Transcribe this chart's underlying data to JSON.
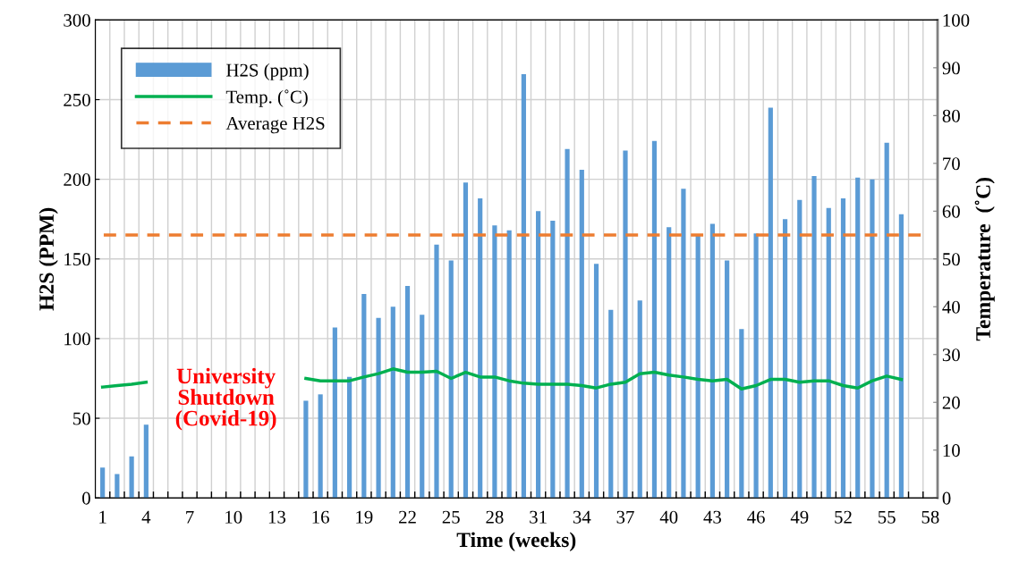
{
  "chart_data": {
    "type": "bar",
    "xlabel": "Time (weeks)",
    "ylabel": "H2S (PPM)",
    "y2label": "Temperature  (˚C)",
    "categories": [
      "1",
      null,
      null,
      "4",
      null,
      null,
      "7",
      null,
      null,
      "10",
      null,
      null,
      "13",
      null,
      null,
      "16",
      null,
      null,
      "19",
      null,
      null,
      "22",
      null,
      null,
      "25",
      null,
      null,
      "28",
      null,
      null,
      "31",
      null,
      null,
      "34",
      null,
      null,
      "37",
      null,
      null,
      "40",
      null,
      null,
      "43",
      null,
      null,
      "46",
      null,
      null,
      "49",
      null,
      null,
      "52",
      null,
      null,
      "55",
      null,
      null,
      "58"
    ],
    "series": [
      {
        "name": "H2S (ppm)",
        "color": "#5b9bd5",
        "values": [
          19,
          15,
          26,
          46,
          null,
          null,
          null,
          null,
          null,
          null,
          null,
          null,
          null,
          null,
          61,
          65,
          107,
          76,
          128,
          113,
          120,
          133,
          115,
          159,
          149,
          198,
          188,
          171,
          168,
          266,
          180,
          174,
          219,
          206,
          147,
          118,
          218,
          124,
          224,
          170,
          194,
          165,
          172,
          149,
          106,
          166,
          245,
          175,
          187,
          202,
          182,
          188,
          201,
          200,
          223,
          178,
          null,
          null
        ]
      },
      {
        "name": "Temp. (˚C)",
        "type": "line",
        "axis": "y2",
        "color": "#00b050",
        "values": [
          23.2,
          23.5,
          23.8,
          24.2,
          null,
          null,
          null,
          null,
          null,
          null,
          null,
          null,
          null,
          null,
          25,
          24.5,
          24.5,
          24.5,
          25.3,
          26,
          27,
          26.3,
          26.3,
          26.5,
          25,
          26.3,
          25.3,
          25.3,
          24.5,
          24,
          23.8,
          23.8,
          23.8,
          23.5,
          23,
          23.8,
          24.2,
          26,
          26.3,
          25.7,
          25.3,
          24.8,
          24.5,
          24.8,
          22.8,
          23.5,
          24.8,
          24.8,
          24.2,
          24.5,
          24.5,
          23.5,
          23,
          24.5,
          25.5,
          24.8,
          null,
          null
        ]
      }
    ],
    "ref_lines": [
      {
        "axis": "y",
        "value": 165,
        "label": "Average H2S",
        "color": "#ed7d31",
        "line_style": "dashed"
      }
    ],
    "annotations": [
      "University\nShutdown\n(Covid-19)"
    ],
    "ylim": [
      0,
      300
    ],
    "yticks": [
      0,
      50,
      100,
      150,
      200,
      250,
      300
    ],
    "y2lim": [
      0,
      100
    ],
    "y2ticks": [
      0,
      10,
      20,
      30,
      40,
      50,
      60,
      70,
      80,
      90,
      100
    ],
    "grid": true,
    "legend": "top left"
  }
}
